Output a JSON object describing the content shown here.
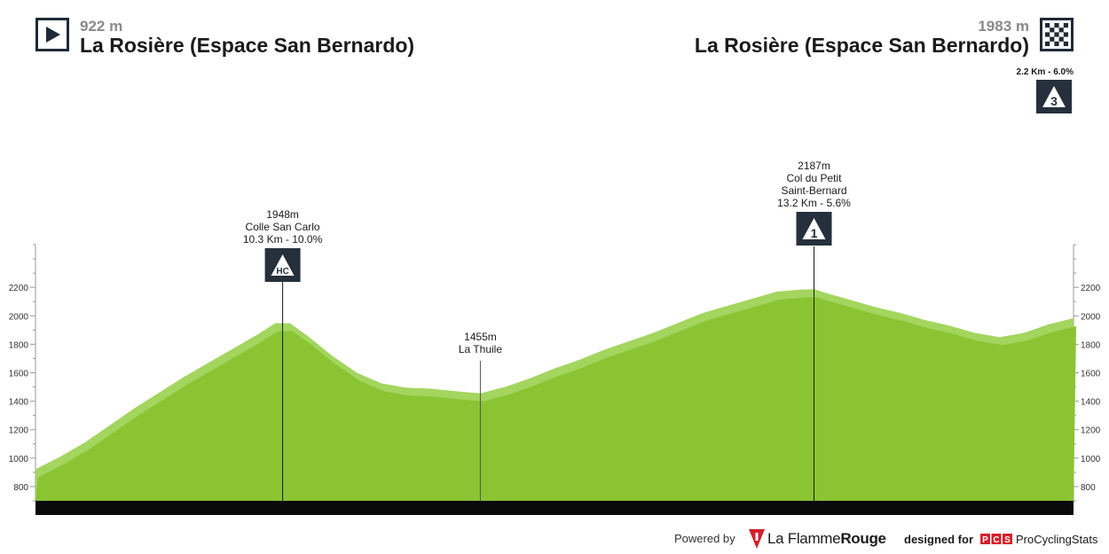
{
  "header": {
    "start": {
      "altitude": "922 m",
      "name": "La Rosière (Espace San Bernardo)",
      "icon": "play-icon"
    },
    "finish": {
      "altitude": "1983 m",
      "name": "La Rosière (Espace San Bernardo)",
      "icon": "checkered-flag-icon"
    },
    "finish_climb": {
      "label": "2.2 Km - 6.0%",
      "category": "3"
    }
  },
  "colors": {
    "profile_light": "#a3d55f",
    "profile_main": "#8ac432",
    "badge_bg": "#26303c",
    "bar": "#0a0a0a",
    "lfr_red": "#d4202a",
    "pcs_red": "#d4202a"
  },
  "chart_data": {
    "type": "area",
    "xlabel": "",
    "ylabel": "",
    "xlim": [
      0,
      42
    ],
    "ylim": [
      700,
      2500
    ],
    "y_ticks": [
      800,
      1000,
      1200,
      1400,
      1600,
      1800,
      2000,
      2200
    ],
    "x_ticks": [
      {
        "x": 0,
        "label": "0"
      },
      {
        "x": 10,
        "label": "10"
      },
      {
        "x": 18,
        "label": "18"
      },
      {
        "x": 31.5,
        "label": "31.5"
      },
      {
        "x": 42,
        "label": "42"
      }
    ],
    "series": [
      {
        "x": [
          0,
          1,
          2,
          3,
          4,
          5,
          6,
          7,
          8,
          9,
          9.7,
          10.3,
          11,
          12,
          13,
          14,
          15,
          16,
          17,
          18,
          19,
          20,
          21,
          22,
          23,
          24,
          25,
          26,
          27,
          28,
          29,
          30,
          31,
          31.5,
          32,
          33,
          34,
          35,
          36,
          37,
          38,
          39,
          40,
          41,
          42
        ],
        "y": [
          922,
          1010,
          1110,
          1230,
          1350,
          1460,
          1570,
          1670,
          1770,
          1870,
          1948,
          1948,
          1860,
          1720,
          1600,
          1525,
          1495,
          1488,
          1470,
          1455,
          1500,
          1560,
          1630,
          1690,
          1760,
          1820,
          1880,
          1950,
          2020,
          2070,
          2120,
          2170,
          2185,
          2187,
          2160,
          2110,
          2060,
          2020,
          1970,
          1930,
          1880,
          1850,
          1880,
          1940,
          1983
        ]
      }
    ],
    "annotations": [
      {
        "x": 10,
        "y": 1948,
        "altitude": "1948m",
        "name": "Colle San Carlo",
        "stats": "10.3 Km - 10.0%",
        "badge": "HC"
      },
      {
        "x": 18,
        "y": 1455,
        "altitude": "1455m",
        "name": "La Thuile"
      },
      {
        "x": 31.5,
        "y": 2187,
        "altitude": "2187m",
        "name": "Col du Petit",
        "name2": "Saint-Bernard",
        "stats": "13.2 Km - 5.6%",
        "badge": "1"
      }
    ]
  },
  "footer": {
    "powered_by": "Powered by",
    "lfr_pre": "La Flamme",
    "lfr_post": "Rouge",
    "designed_for": "designed for",
    "pcs_logo": "PCS",
    "pcs_name": "ProCyclingStats"
  }
}
